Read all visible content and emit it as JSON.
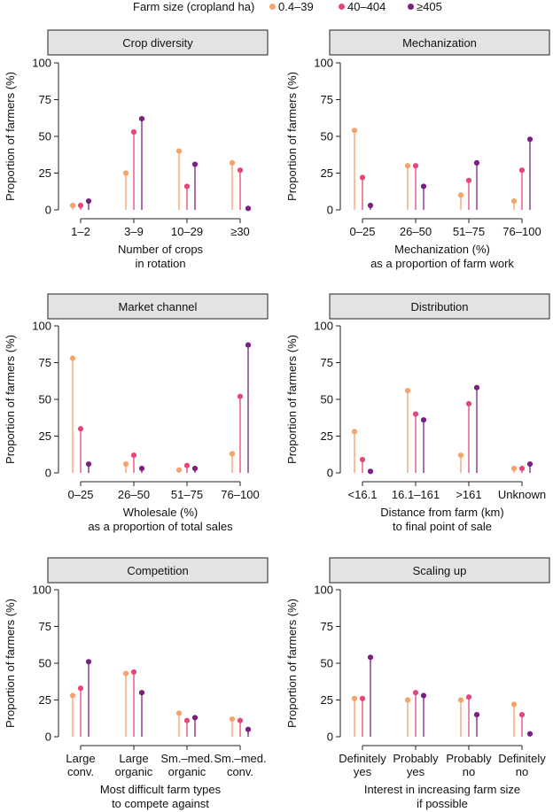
{
  "legend": {
    "title": "Farm size (cropland ha)",
    "items": [
      {
        "label": "0.4–39",
        "color": "#f5a26b"
      },
      {
        "label": "40–404",
        "color": "#e8457a"
      },
      {
        "label": "≥405",
        "color": "#7b1f82"
      }
    ]
  },
  "chart_data": [
    {
      "type": "lollipop",
      "title": "Crop diversity",
      "ylabel": "Proportion of farmers (%)",
      "xlabel": [
        "Number of crops",
        "in rotation"
      ],
      "ylim": [
        0,
        100
      ],
      "yticks": [
        0,
        25,
        50,
        75,
        100
      ],
      "categories": [
        [
          "1–2"
        ],
        [
          "3–9"
        ],
        [
          "10–29"
        ],
        [
          "≥30"
        ]
      ],
      "series": [
        {
          "name": "0.4–39",
          "values": [
            3,
            25,
            40,
            32
          ]
        },
        {
          "name": "40–404",
          "values": [
            3,
            53,
            16,
            27
          ]
        },
        {
          "name": "≥405",
          "values": [
            6,
            62,
            31,
            1
          ]
        }
      ]
    },
    {
      "type": "lollipop",
      "title": "Mechanization",
      "ylabel": "Proportion of farmers (%)",
      "xlabel": [
        "Mechanization (%)",
        "as a proportion of farm work"
      ],
      "ylim": [
        0,
        100
      ],
      "yticks": [
        0,
        25,
        50,
        75,
        100
      ],
      "categories": [
        [
          "0–25"
        ],
        [
          "26–50"
        ],
        [
          "51–75"
        ],
        [
          "76–100"
        ]
      ],
      "series": [
        {
          "name": "0.4–39",
          "values": [
            54,
            30,
            10,
            6
          ]
        },
        {
          "name": "40–404",
          "values": [
            22,
            30,
            20,
            27
          ]
        },
        {
          "name": "≥405",
          "values": [
            3,
            16,
            32,
            48
          ]
        }
      ]
    },
    {
      "type": "lollipop",
      "title": "Market channel",
      "ylabel": "Proportion of farmers (%)",
      "xlabel": [
        "Wholesale (%)",
        "as a proportion of total sales"
      ],
      "ylim": [
        0,
        100
      ],
      "yticks": [
        0,
        25,
        50,
        75,
        100
      ],
      "categories": [
        [
          "0–25"
        ],
        [
          "26–50"
        ],
        [
          "51–75"
        ],
        [
          "76–100"
        ]
      ],
      "series": [
        {
          "name": "0.4–39",
          "values": [
            78,
            6,
            2,
            13
          ]
        },
        {
          "name": "40–404",
          "values": [
            30,
            12,
            5,
            52
          ]
        },
        {
          "name": "≥405",
          "values": [
            6,
            3,
            3,
            87
          ]
        }
      ]
    },
    {
      "type": "lollipop",
      "title": "Distribution",
      "ylabel": "Proportion of farmers (%)",
      "xlabel": [
        "Distance from farm (km)",
        "to final point of sale"
      ],
      "ylim": [
        0,
        100
      ],
      "yticks": [
        0,
        25,
        50,
        75,
        100
      ],
      "categories": [
        [
          "<16.1"
        ],
        [
          "16.1–161"
        ],
        [
          ">161"
        ],
        [
          "Unknown"
        ]
      ],
      "series": [
        {
          "name": "0.4–39",
          "values": [
            28,
            56,
            12,
            3
          ]
        },
        {
          "name": "40–404",
          "values": [
            9,
            40,
            47,
            3
          ]
        },
        {
          "name": "≥405",
          "values": [
            1,
            36,
            58,
            6
          ]
        }
      ]
    },
    {
      "type": "lollipop",
      "title": "Competition",
      "ylabel": "Proportion of farmers (%)",
      "xlabel": [
        "Most difficult farm types",
        "to compete against"
      ],
      "ylim": [
        0,
        100
      ],
      "yticks": [
        0,
        25,
        50,
        75,
        100
      ],
      "categories": [
        [
          "Large",
          "conv."
        ],
        [
          "Large",
          "organic"
        ],
        [
          "Sm.–med.",
          "organic"
        ],
        [
          "Sm.–med.",
          "conv."
        ]
      ],
      "series": [
        {
          "name": "0.4–39",
          "values": [
            28,
            43,
            16,
            12
          ]
        },
        {
          "name": "40–404",
          "values": [
            33,
            44,
            11,
            11
          ]
        },
        {
          "name": "≥405",
          "values": [
            51,
            30,
            13,
            5
          ]
        }
      ]
    },
    {
      "type": "lollipop",
      "title": "Scaling up",
      "ylabel": "Proportion of farmers (%)",
      "xlabel": [
        "Interest in increasing farm size",
        "if possible"
      ],
      "ylim": [
        0,
        100
      ],
      "yticks": [
        0,
        25,
        50,
        75,
        100
      ],
      "categories": [
        [
          "Definitely",
          "yes"
        ],
        [
          "Probably",
          "yes"
        ],
        [
          "Probably",
          "no"
        ],
        [
          "Definitely",
          "no"
        ]
      ],
      "series": [
        {
          "name": "0.4–39",
          "values": [
            26,
            25,
            25,
            22
          ]
        },
        {
          "name": "40–404",
          "values": [
            26,
            30,
            27,
            15
          ]
        },
        {
          "name": "≥405",
          "values": [
            54,
            28,
            15,
            2
          ]
        }
      ]
    }
  ]
}
